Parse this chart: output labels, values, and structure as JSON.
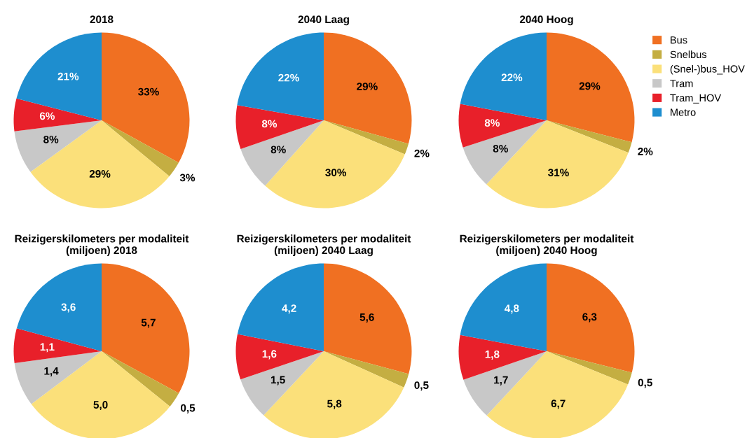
{
  "chart_data": [
    {
      "type": "pie",
      "title": "2018",
      "legend": "right",
      "categories": [
        "Bus",
        "Snelbus",
        "(Snel-)bus_HOV",
        "Tram",
        "Tram_HOV",
        "Metro"
      ],
      "colors": [
        "#f07022",
        "#c4ae42",
        "#fbe07a",
        "#c8c8c8",
        "#e8202a",
        "#1e8ecf"
      ],
      "values": [
        33,
        3,
        29,
        8,
        6,
        21
      ],
      "value_labels": [
        "33%",
        "3%",
        "29%",
        "8%",
        "6%",
        "21%"
      ]
    },
    {
      "type": "pie",
      "title": "2040 Laag",
      "colors": [
        "#f07022",
        "#c4ae42",
        "#fbe07a",
        "#c8c8c8",
        "#e8202a",
        "#1e8ecf"
      ],
      "values": [
        29,
        2,
        30,
        8,
        8,
        22
      ],
      "value_labels": [
        "29%",
        "2%",
        "30%",
        "8%",
        "8%",
        "22%"
      ]
    },
    {
      "type": "pie",
      "title": "2040 Hoog",
      "colors": [
        "#f07022",
        "#c4ae42",
        "#fbe07a",
        "#c8c8c8",
        "#e8202a",
        "#1e8ecf"
      ],
      "values": [
        29,
        2,
        31,
        8,
        8,
        22
      ],
      "value_labels": [
        "29%",
        "2%",
        "31%",
        "8%",
        "8%",
        "22%"
      ]
    },
    {
      "type": "pie",
      "title": "Reizigerskilometers per modaliteit\n(miljoen) 2018",
      "colors": [
        "#f07022",
        "#c4ae42",
        "#fbe07a",
        "#c8c8c8",
        "#e8202a",
        "#1e8ecf"
      ],
      "values": [
        5.7,
        0.5,
        5.0,
        1.4,
        1.1,
        3.6
      ],
      "value_labels": [
        "5,7",
        "0,5",
        "5,0",
        "1,4",
        "1,1",
        "3,6"
      ]
    },
    {
      "type": "pie",
      "title": "Reizigerskilometers per modaliteit\n(miljoen) 2040 Laag",
      "colors": [
        "#f07022",
        "#c4ae42",
        "#fbe07a",
        "#c8c8c8",
        "#e8202a",
        "#1e8ecf"
      ],
      "values": [
        5.6,
        0.5,
        5.8,
        1.5,
        1.6,
        4.2
      ],
      "value_labels": [
        "5,6",
        "0,5",
        "5,8",
        "1,5",
        "1,6",
        "4,2"
      ]
    },
    {
      "type": "pie",
      "title": "Reizigerskilometers per modaliteit\n(miljoen) 2040 Hoog",
      "colors": [
        "#f07022",
        "#c4ae42",
        "#fbe07a",
        "#c8c8c8",
        "#e8202a",
        "#1e8ecf"
      ],
      "values": [
        6.3,
        0.5,
        6.7,
        1.7,
        1.8,
        4.8
      ],
      "value_labels": [
        "6,3",
        "0,5",
        "6,7",
        "1,7",
        "1,8",
        "4,8"
      ]
    }
  ]
}
